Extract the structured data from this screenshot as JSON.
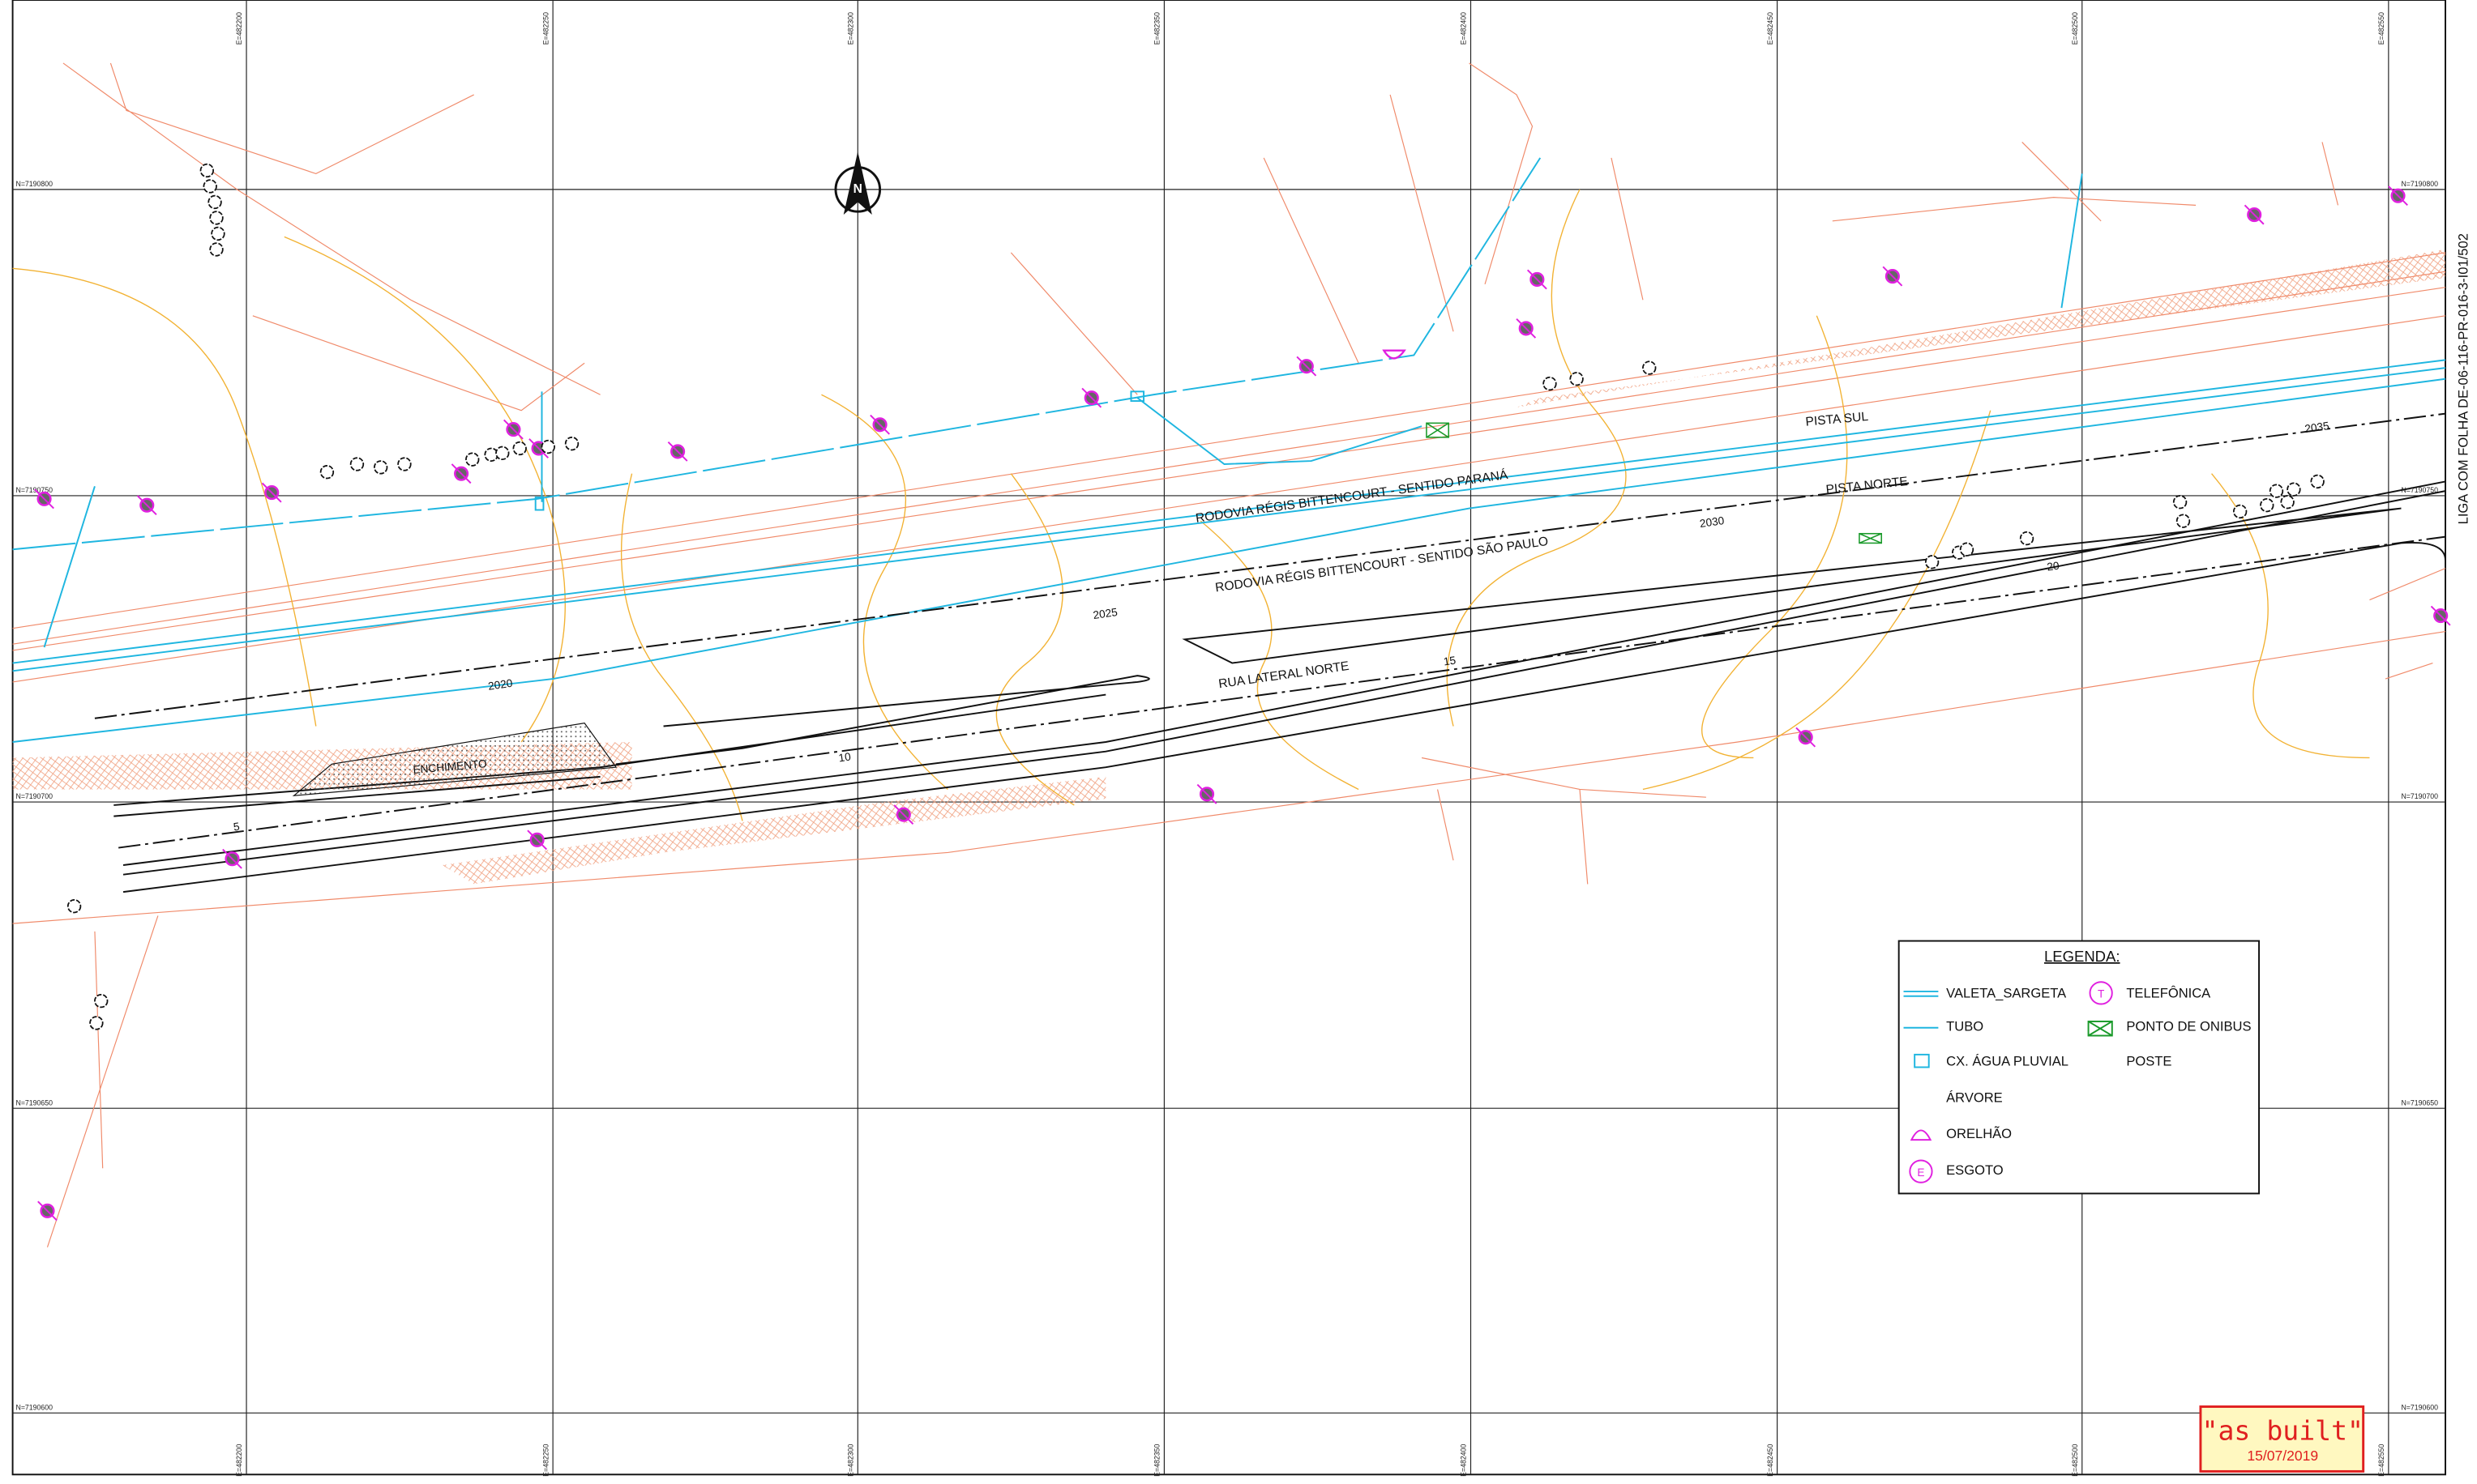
{
  "grid": {
    "eastings": [
      "E=482200",
      "E=482250",
      "E=482300",
      "E=482350",
      "E=482400",
      "E=482450",
      "E=482500",
      "E=482550"
    ],
    "northings": [
      "N=7190800",
      "N=7190750",
      "N=7190700",
      "N=7190650",
      "N=7190600"
    ]
  },
  "north_arrow": "N",
  "sheet_link": "LIGA COM FOLHA DE-06-116-PR-016-3-I01/502",
  "labels": {
    "pista_sul": "PISTA SUL",
    "pista_norte": "PISTA NORTE",
    "sentido_parana": "RODOVIA RÉGIS BITTENCOURT - SENTIDO PARANÁ",
    "sentido_sao_paulo": "RODOVIA RÉGIS BITTENCOURT - SENTIDO SÃO PAULO",
    "rua_lateral": "RUA LATERAL NORTE",
    "enchimento": "ENCHIMENTO"
  },
  "stations_main": [
    "2020",
    "2025",
    "2030",
    "2035"
  ],
  "stations_lateral": [
    "5",
    "10",
    "15",
    "20"
  ],
  "legend": {
    "title": "LEGENDA:",
    "items": [
      "VALETA_SARGETA",
      "TUBO",
      "CX. ÁGUA PLUVIAL",
      "ÁRVORE",
      "ORELHÃO",
      "ESGOTO",
      "TELEFÔNICA",
      "PONTO DE ONIBUS",
      "POSTE"
    ],
    "telefonica_symbol": "T",
    "esgoto_symbol": "E"
  },
  "stamp": {
    "title": "\"as built\"",
    "date": "15/07/2019"
  }
}
